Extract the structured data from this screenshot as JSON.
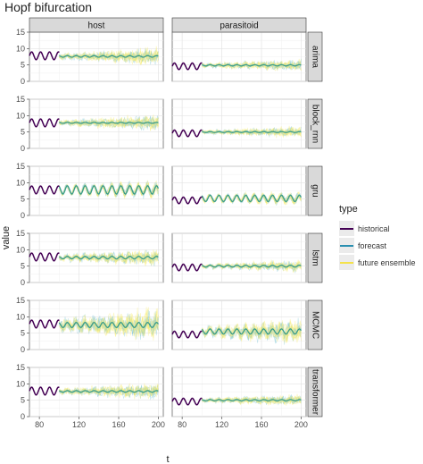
{
  "title": "Hopf bifurcation",
  "chart_data": {
    "type": "line",
    "title": "Hopf bifurcation",
    "xlabel": "t",
    "ylabel": "value",
    "xlim": [
      70,
      205
    ],
    "ylim": [
      0,
      15
    ],
    "x_ticks": [
      80,
      120,
      160,
      200
    ],
    "y_ticks": [
      0,
      5,
      10,
      15
    ],
    "grid": true,
    "legend_position": "right",
    "columns": [
      "host",
      "parasitoid"
    ],
    "rows": [
      "arima",
      "block_rnn",
      "gru",
      "lstm",
      "MCMC",
      "transformer"
    ],
    "legend": {
      "title": "type",
      "entries": [
        {
          "label": "historical",
          "color": "#440154"
        },
        {
          "label": "forecast",
          "color": "#2a8fb0"
        },
        {
          "label": "future ensemble",
          "color": "#fde725"
        }
      ]
    },
    "series": [
      {
        "name": "historical",
        "x_range": [
          70,
          100
        ],
        "host": {
          "mean": 7.8,
          "amplitude": 1.2,
          "period": 9
        },
        "parasitoid": {
          "mean": 4.6,
          "amplitude": 1.0,
          "period": 9
        }
      },
      {
        "name": "forecast",
        "x_range": [
          100,
          200
        ]
      },
      {
        "name": "future ensemble",
        "x_range": [
          100,
          200
        ]
      }
    ],
    "panels": [
      {
        "row": "arima",
        "col": "host",
        "forecast_mean": 7.6,
        "oscillation": 0.25,
        "ensemble_spread": 2.5
      },
      {
        "row": "arima",
        "col": "parasitoid",
        "forecast_mean": 4.9,
        "oscillation": 0.2,
        "ensemble_spread": 1.7
      },
      {
        "row": "block_rnn",
        "col": "host",
        "forecast_mean": 7.8,
        "oscillation": 0.15,
        "ensemble_spread": 2.2
      },
      {
        "row": "block_rnn",
        "col": "parasitoid",
        "forecast_mean": 5.0,
        "oscillation": 0.15,
        "ensemble_spread": 1.6
      },
      {
        "row": "gru",
        "col": "host",
        "forecast_mean": 7.8,
        "oscillation": 1.3,
        "ensemble_spread": 1.8
      },
      {
        "row": "gru",
        "col": "parasitoid",
        "forecast_mean": 5.2,
        "oscillation": 1.0,
        "ensemble_spread": 1.3
      },
      {
        "row": "lstm",
        "col": "host",
        "forecast_mean": 7.6,
        "oscillation": 0.4,
        "ensemble_spread": 2.3
      },
      {
        "row": "lstm",
        "col": "parasitoid",
        "forecast_mean": 5.0,
        "oscillation": 0.3,
        "ensemble_spread": 1.6
      },
      {
        "row": "MCMC",
        "col": "host",
        "forecast_mean": 7.5,
        "oscillation": 0.8,
        "ensemble_spread": 4.5
      },
      {
        "row": "MCMC",
        "col": "parasitoid",
        "forecast_mean": 5.5,
        "oscillation": 0.8,
        "ensemble_spread": 3.5
      },
      {
        "row": "transformer",
        "col": "host",
        "forecast_mean": 7.7,
        "oscillation": 0.25,
        "ensemble_spread": 2.3
      },
      {
        "row": "transformer",
        "col": "parasitoid",
        "forecast_mean": 5.0,
        "oscillation": 0.2,
        "ensemble_spread": 1.6
      }
    ]
  }
}
